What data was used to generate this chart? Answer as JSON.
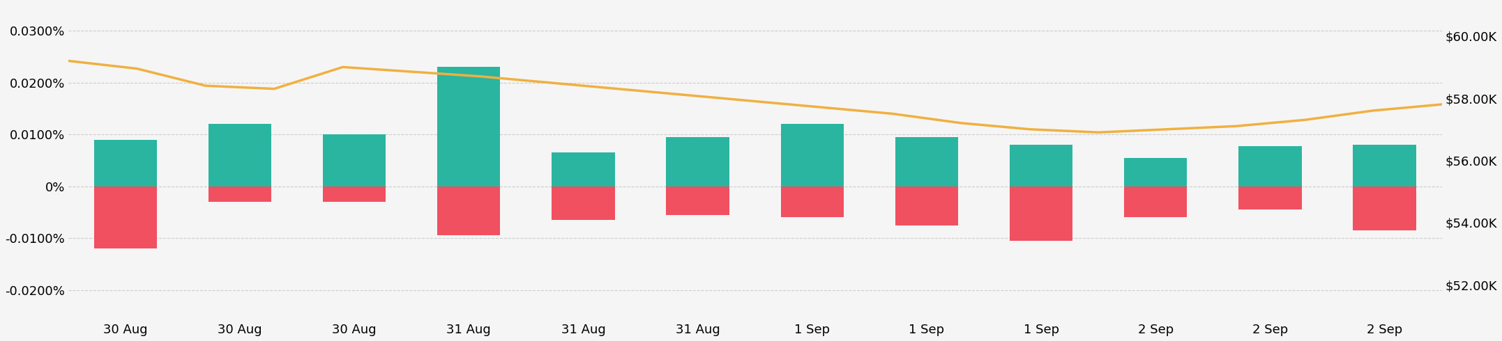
{
  "bar_labels": [
    "30 Aug",
    "30 Aug",
    "30 Aug",
    "31 Aug",
    "31 Aug",
    "31 Aug",
    "1 Sep",
    "1 Sep",
    "1 Sep",
    "2 Sep",
    "2 Sep",
    "2 Sep"
  ],
  "bar_positive": [
    9e-05,
    0.00012,
    0.0001,
    0.00023,
    6.5e-05,
    9.5e-05,
    0.00012,
    9.5e-05,
    8e-05,
    5.5e-05,
    7.8e-05,
    8e-05
  ],
  "bar_negative": [
    -0.00012,
    -3e-05,
    -3e-05,
    -9.5e-05,
    -6.5e-05,
    -5.5e-05,
    -6e-05,
    -7.5e-05,
    -0.000105,
    -6e-05,
    -4.5e-05,
    -8.5e-05
  ],
  "btc_price": [
    59200,
    58950,
    58400,
    58300,
    59000,
    58850,
    58700,
    58500,
    58300,
    58100,
    57900,
    57700,
    57500,
    57200,
    57000,
    56900,
    57000,
    57100,
    57300,
    57600,
    57800
  ],
  "color_positive": "#2ab5a0",
  "color_negative": "#f05060",
  "color_btc": "#f0b040",
  "background_color": "#f5f5f5",
  "left_ytick_vals": [
    -0.0002,
    -0.0001,
    0.0,
    0.0001,
    0.0002,
    0.0003
  ],
  "left_yticklabels": [
    "-0.0200%",
    "-0.0100%",
    "0%",
    "0.0100%",
    "0.0200%",
    "0.0300%"
  ],
  "right_yticks": [
    52000,
    54000,
    56000,
    58000,
    60000
  ],
  "right_yticklabels": [
    "$52.00K",
    "$54.00K",
    "$56.00K",
    "$58.00K",
    "$60.00K"
  ],
  "ylim_left": [
    -0.00025,
    0.00035
  ],
  "ylim_right": [
    51000,
    61000
  ],
  "bar_width": 0.55
}
